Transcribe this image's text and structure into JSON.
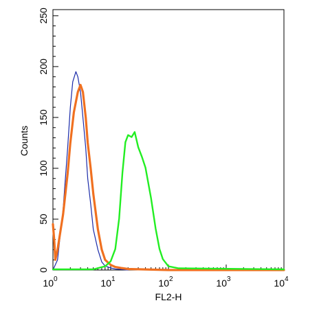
{
  "chart_data": {
    "type": "line",
    "title": "",
    "xlabel": "FL2-H",
    "ylabel": "Counts",
    "xscale": "log",
    "xlim": [
      1,
      10000
    ],
    "ylim": [
      0,
      256
    ],
    "x_ticks": [
      {
        "base": "10",
        "exp": "0"
      },
      {
        "base": "10",
        "exp": "1"
      },
      {
        "base": "10",
        "exp": "2"
      },
      {
        "base": "10",
        "exp": "3"
      },
      {
        "base": "10",
        "exp": "4"
      }
    ],
    "y_ticks": [
      "0",
      "50",
      "100",
      "150",
      "200",
      "250"
    ],
    "y_tick_values": [
      0,
      50,
      100,
      150,
      200,
      250
    ],
    "grid": false,
    "legend": "none",
    "series": [
      {
        "color": "#1a2aa8",
        "x": [
          1.0,
          1.2,
          1.5,
          1.8,
          2.0,
          2.2,
          2.5,
          2.7,
          3.0,
          3.3,
          3.7,
          4.0,
          4.5,
          5.0,
          6.0,
          7.0,
          8.0,
          10.0,
          12.0,
          20.0
        ],
        "y": [
          0,
          10,
          60,
          120,
          160,
          185,
          195,
          190,
          175,
          150,
          120,
          90,
          65,
          40,
          20,
          8,
          4,
          2,
          1,
          0
        ]
      },
      {
        "color": "#f07020",
        "x": [
          1.0,
          1.05,
          1.1,
          1.2,
          1.5,
          1.8,
          2.0,
          2.3,
          2.7,
          3.0,
          3.3,
          3.7,
          4.0,
          4.5,
          5.0,
          6.0,
          7.0,
          8.0,
          10.0,
          12.0,
          15.0,
          20.0,
          100.0,
          10000.0
        ],
        "y": [
          45,
          30,
          10,
          20,
          55,
          95,
          125,
          155,
          175,
          182,
          175,
          150,
          125,
          100,
          75,
          40,
          20,
          10,
          5,
          3,
          2,
          1,
          0,
          0
        ]
      },
      {
        "color": "#22ee22",
        "x": [
          1.0,
          5.0,
          8.0,
          10.0,
          12.0,
          14.0,
          16.0,
          18.0,
          20.0,
          23.0,
          26.0,
          30.0,
          35.0,
          40.0,
          50.0,
          60.0,
          70.0,
          80.0,
          100.0,
          150.0,
          10000.0
        ],
        "y": [
          0,
          0,
          3,
          8,
          20,
          50,
          95,
          125,
          132,
          130,
          135,
          120,
          110,
          100,
          70,
          40,
          20,
          10,
          3,
          1,
          0
        ]
      }
    ]
  }
}
